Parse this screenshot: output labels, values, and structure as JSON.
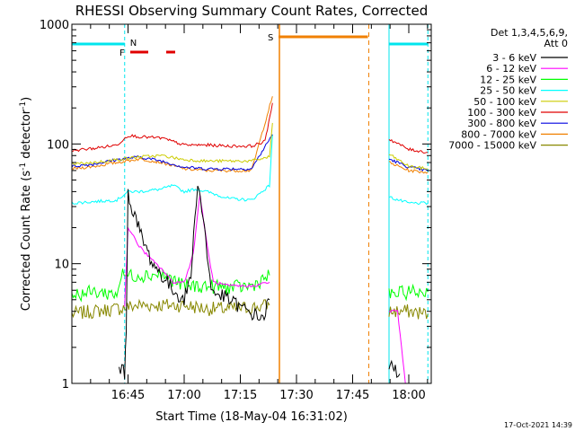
{
  "chart_data": {
    "type": "line",
    "title": "RHESSI Observing Summary Count Rates, Corrected",
    "xlabel": "Start Time (18-May-04 16:31:02)",
    "ylabel_main": "Corrected Count Rate (s",
    "ylabel_sup1": "-1",
    "ylabel_mid": " detector",
    "ylabel_sup2": "-1",
    "ylabel_end": ")",
    "yscale": "log",
    "ylim": [
      1,
      1000
    ],
    "xlim_minutes": [
      16.5,
      18.1
    ],
    "x_ticks": [
      {
        "label": "16:45",
        "t": 16.75
      },
      {
        "label": "17:00",
        "t": 17.0
      },
      {
        "label": "17:15",
        "t": 17.25
      },
      {
        "label": "17:30",
        "t": 17.5
      },
      {
        "label": "17:45",
        "t": 17.75
      },
      {
        "label": "18:00",
        "t": 18.0
      }
    ],
    "y_ticks": [
      {
        "label": "1",
        "v": 1
      },
      {
        "label": "10",
        "v": 10
      },
      {
        "label": "100",
        "v": 100
      },
      {
        "label": "1000",
        "v": 1000
      }
    ],
    "legend_title_1": "Det 1,3,4,5,6,9,",
    "legend_title_2": "Att 0",
    "footer_date": "17-Oct-2021 14:39",
    "flags": {
      "N_label": "N",
      "F_label": "F",
      "S_label": "S",
      "night_1": [
        16.5,
        16.735
      ],
      "night_2": [
        17.912,
        18.085
      ],
      "flare_segments": [
        [
          16.76,
          16.84
        ],
        [
          16.92,
          16.96
        ]
      ],
      "saa": [
        17.396,
        17.842
      ],
      "night_color": "#00e5ee",
      "flare_color": "#e00000",
      "saa_color": "#f08000"
    },
    "series": [
      {
        "name": "3 - 6 keV",
        "color": "#000000",
        "points": [
          [
            16.71,
            1.4
          ],
          [
            16.735,
            1.2
          ],
          [
            16.742,
            3
          ],
          [
            16.75,
            38
          ],
          [
            16.78,
            25
          ],
          [
            16.82,
            15
          ],
          [
            16.86,
            10
          ],
          [
            16.9,
            8
          ],
          [
            16.95,
            6
          ],
          [
            17.0,
            5
          ],
          [
            17.03,
            8
          ],
          [
            17.06,
            50
          ],
          [
            17.09,
            20
          ],
          [
            17.12,
            6
          ],
          [
            17.2,
            5
          ],
          [
            17.28,
            4
          ],
          [
            17.35,
            3.5
          ],
          [
            17.38,
            5
          ],
          [
            17.912,
            1.4
          ],
          [
            17.94,
            1.3
          ],
          [
            17.96,
            1.2
          ]
        ]
      },
      {
        "name": "6 - 12 keV",
        "color": "#ff00ff",
        "points": [
          [
            16.735,
            4.5
          ],
          [
            16.75,
            20
          ],
          [
            16.8,
            14
          ],
          [
            16.85,
            11
          ],
          [
            16.9,
            9
          ],
          [
            16.95,
            7
          ],
          [
            17.0,
            7
          ],
          [
            17.04,
            12
          ],
          [
            17.07,
            38
          ],
          [
            17.1,
            15
          ],
          [
            17.13,
            7
          ],
          [
            17.2,
            6.5
          ],
          [
            17.3,
            6.5
          ],
          [
            17.38,
            7
          ],
          [
            17.912,
            4
          ],
          [
            17.95,
            4
          ],
          [
            17.985,
            1.0
          ]
        ]
      },
      {
        "name": "12 - 25 keV",
        "color": "#00ff00",
        "points": [
          [
            16.5,
            5.5
          ],
          [
            16.6,
            5.8
          ],
          [
            16.7,
            5.6
          ],
          [
            16.72,
            8
          ],
          [
            16.8,
            8
          ],
          [
            16.9,
            8.2
          ],
          [
            17.0,
            6.5
          ],
          [
            17.1,
            6.5
          ],
          [
            17.2,
            6.3
          ],
          [
            17.3,
            6.5
          ],
          [
            17.38,
            8
          ],
          [
            17.912,
            5.5
          ],
          [
            18.0,
            5.8
          ],
          [
            18.085,
            5.8
          ]
        ]
      },
      {
        "name": "25 - 50 keV",
        "color": "#00ffff",
        "points": [
          [
            16.5,
            32
          ],
          [
            16.6,
            33
          ],
          [
            16.7,
            34
          ],
          [
            16.75,
            40
          ],
          [
            16.8,
            40
          ],
          [
            16.9,
            42
          ],
          [
            16.95,
            45
          ],
          [
            17.0,
            40
          ],
          [
            17.05,
            42
          ],
          [
            17.1,
            40
          ],
          [
            17.2,
            35
          ],
          [
            17.3,
            34
          ],
          [
            17.38,
            45
          ],
          [
            17.393,
            120
          ],
          [
            17.912,
            36
          ],
          [
            18.0,
            32
          ],
          [
            18.085,
            32
          ]
        ]
      },
      {
        "name": "50 - 100 keV",
        "color": "#cccc00",
        "points": [
          [
            16.5,
            68
          ],
          [
            16.6,
            70
          ],
          [
            16.7,
            74
          ],
          [
            16.8,
            78
          ],
          [
            16.9,
            80
          ],
          [
            17.0,
            74
          ],
          [
            17.1,
            72
          ],
          [
            17.2,
            72
          ],
          [
            17.3,
            72
          ],
          [
            17.38,
            78
          ],
          [
            17.393,
            150
          ],
          [
            17.912,
            82
          ],
          [
            18.0,
            65
          ],
          [
            18.085,
            62
          ]
        ]
      },
      {
        "name": "100 - 300 keV",
        "color": "#e00000",
        "points": [
          [
            16.5,
            88
          ],
          [
            16.6,
            92
          ],
          [
            16.7,
            98
          ],
          [
            16.75,
            118
          ],
          [
            16.8,
            115
          ],
          [
            16.9,
            112
          ],
          [
            17.0,
            98
          ],
          [
            17.1,
            98
          ],
          [
            17.2,
            96
          ],
          [
            17.3,
            96
          ],
          [
            17.36,
            105
          ],
          [
            17.393,
            220
          ],
          [
            17.912,
            110
          ],
          [
            18.0,
            90
          ],
          [
            18.085,
            85
          ]
        ]
      },
      {
        "name": "300 - 800 keV",
        "color": "#0000e0",
        "points": [
          [
            16.5,
            65
          ],
          [
            16.6,
            68
          ],
          [
            16.7,
            74
          ],
          [
            16.8,
            78
          ],
          [
            16.9,
            72
          ],
          [
            17.0,
            64
          ],
          [
            17.1,
            62
          ],
          [
            17.2,
            62
          ],
          [
            17.3,
            62
          ],
          [
            17.393,
            120
          ],
          [
            17.912,
            75
          ],
          [
            18.0,
            64
          ],
          [
            18.085,
            60
          ]
        ]
      },
      {
        "name": "800 - 7000 keV",
        "color": "#f08000",
        "points": [
          [
            16.5,
            62
          ],
          [
            16.6,
            65
          ],
          [
            16.7,
            70
          ],
          [
            16.8,
            75
          ],
          [
            16.9,
            70
          ],
          [
            17.0,
            62
          ],
          [
            17.1,
            60
          ],
          [
            17.2,
            60
          ],
          [
            17.3,
            60
          ],
          [
            17.393,
            250
          ],
          [
            17.912,
            70
          ],
          [
            18.0,
            60
          ],
          [
            18.085,
            58
          ]
        ]
      },
      {
        "name": "7000 - 15000 keV",
        "color": "#888800",
        "points": [
          [
            16.5,
            3.8
          ],
          [
            16.6,
            4
          ],
          [
            16.7,
            4.2
          ],
          [
            16.8,
            4.5
          ],
          [
            16.9,
            4.5
          ],
          [
            17.0,
            4.5
          ],
          [
            17.1,
            4.2
          ],
          [
            17.2,
            4.2
          ],
          [
            17.3,
            4.3
          ],
          [
            17.38,
            4.5
          ],
          [
            17.912,
            4
          ],
          [
            18.0,
            4
          ],
          [
            18.085,
            3.8
          ]
        ]
      }
    ]
  }
}
